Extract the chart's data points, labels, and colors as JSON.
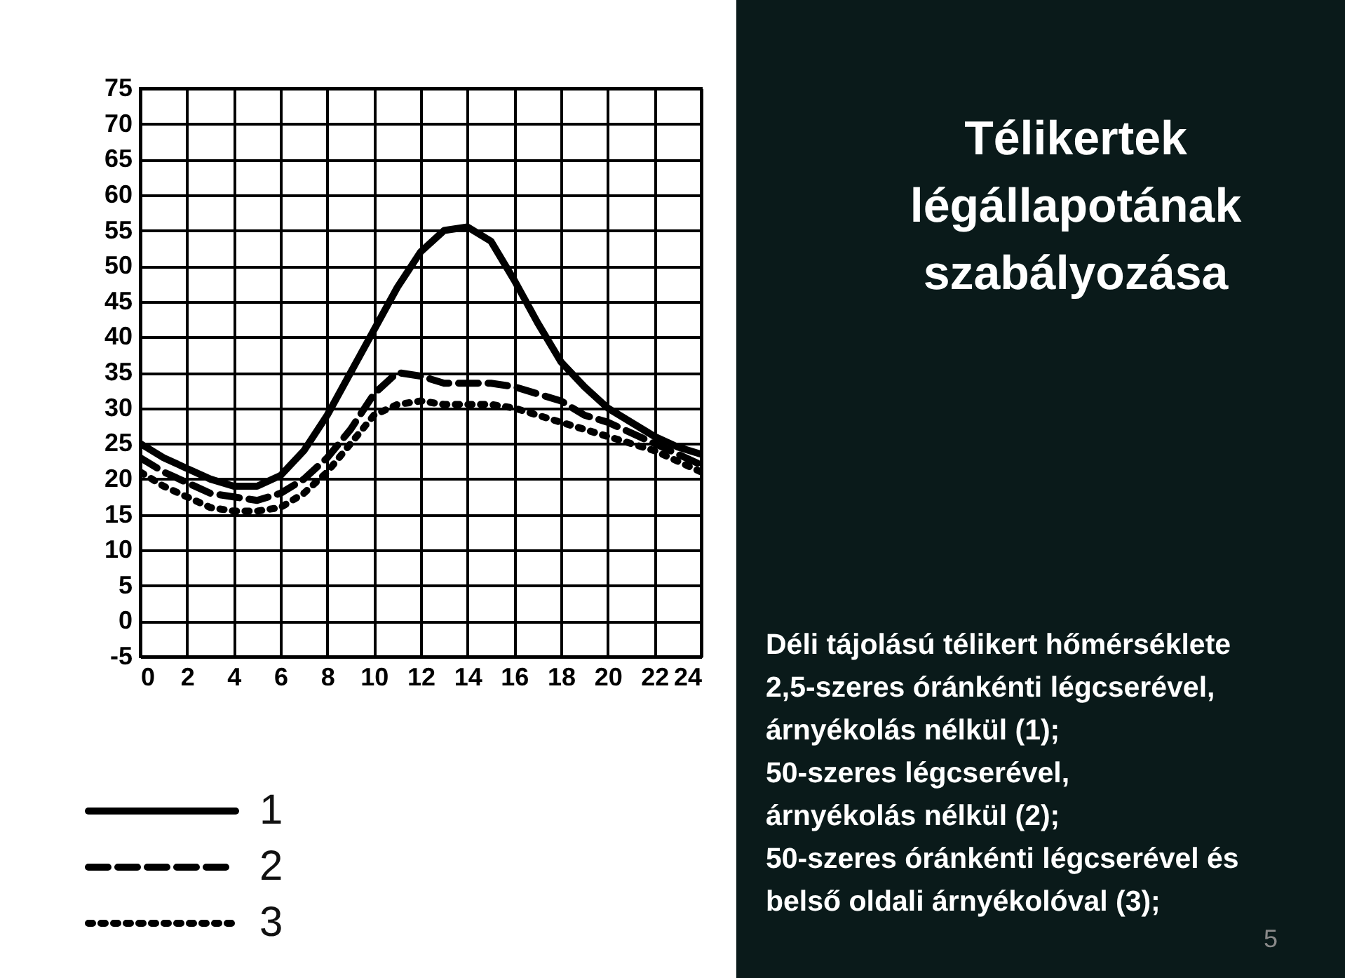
{
  "chart_data": {
    "type": "line",
    "title": "Télikertek légállapotának szabályozása",
    "x": [
      0,
      1,
      2,
      3,
      4,
      5,
      6,
      7,
      8,
      9,
      10,
      11,
      12,
      13,
      14,
      15,
      16,
      17,
      18,
      19,
      20,
      21,
      22,
      23,
      24
    ],
    "series": [
      {
        "name": "1",
        "color": "#000000",
        "line_style": "solid",
        "values": [
          25,
          23,
          21.5,
          20,
          19,
          19,
          20.5,
          24,
          29,
          35,
          41,
          47,
          52,
          55,
          55.5,
          53.5,
          48,
          42,
          36.5,
          33,
          30,
          28,
          26,
          24.5,
          23.5
        ]
      },
      {
        "name": "2",
        "color": "#000000",
        "line_style": "dashed",
        "values": [
          23,
          21,
          19.5,
          18,
          17.5,
          17,
          18,
          20,
          23,
          27,
          32,
          35,
          34.5,
          33.5,
          33.5,
          33.5,
          33,
          32,
          31,
          29,
          28,
          26.5,
          25,
          23.5,
          22
        ]
      },
      {
        "name": "3",
        "color": "#000000",
        "line_style": "dotted",
        "values": [
          21,
          19,
          17.5,
          16,
          15.5,
          15.5,
          16,
          18,
          21,
          25,
          29,
          30.5,
          31,
          30.5,
          30.5,
          30.5,
          30,
          29,
          28,
          27,
          26,
          25,
          24,
          22.5,
          21
        ]
      }
    ],
    "xlim": [
      0,
      24
    ],
    "xticks": [
      0,
      2,
      4,
      6,
      8,
      10,
      12,
      14,
      16,
      18,
      20,
      22,
      24
    ],
    "ylim": [
      -5,
      75
    ],
    "yticks": [
      -5,
      0,
      5,
      10,
      15,
      20,
      25,
      30,
      35,
      40,
      45,
      50,
      55,
      60,
      65,
      70,
      75
    ],
    "grid": true,
    "legend": "bottom left",
    "annotations": [
      "Déli tájolású télikert hőmérséklete\n2,5-szeres óránkénti légcserével,\nárnyékolás nélkül (1);\n50-szeres légcserével,\nárnyékolás nélkül (2);\n50-szeres óránkénti légcserével és\nbelső oldali árnyékolóval (3);",
      "5"
    ]
  }
}
